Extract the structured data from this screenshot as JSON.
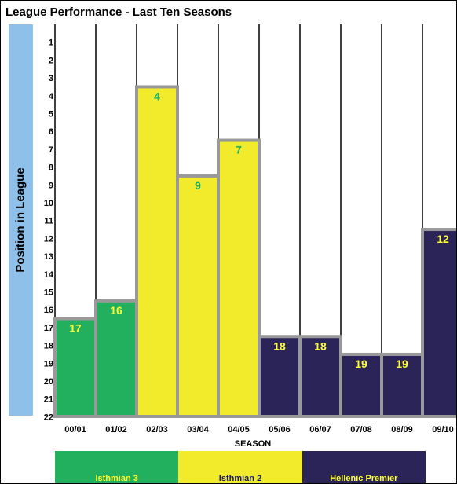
{
  "chart_data": {
    "type": "bar",
    "title": "League Performance - Last Ten Seasons",
    "xlabel": "SEASON",
    "ylabel": "Position in League",
    "categories": [
      "00/01",
      "01/02",
      "02/03",
      "03/04",
      "04/05",
      "05/06",
      "06/07",
      "07/08",
      "08/09",
      "09/10"
    ],
    "values": [
      17,
      16,
      4,
      9,
      7,
      18,
      18,
      19,
      19,
      12
    ],
    "leagues": [
      "Isthmian 3",
      "Isthmian 3",
      "Isthmian 2",
      "Isthmian 2",
      "Isthmian 2",
      "Hellenic Premier",
      "Hellenic Premier",
      "Hellenic Premier",
      "Hellenic Premier",
      "Hellenic Premier"
    ],
    "yticks": [
      1,
      2,
      3,
      4,
      5,
      6,
      7,
      8,
      9,
      10,
      11,
      12,
      13,
      14,
      15,
      16,
      17,
      18,
      19,
      20,
      21,
      22
    ],
    "ylim": [
      1,
      22
    ],
    "y_inverted": true,
    "legend": [
      {
        "name": "Isthmian 3",
        "color": "#22b05e",
        "text_color": "#ffff33"
      },
      {
        "name": "Isthmian 2",
        "color": "#f1eb2b",
        "text_color": "#1a1a5e"
      },
      {
        "name": "Hellenic Premier",
        "color": "#2b2458",
        "text_color": "#ffff33"
      }
    ]
  }
}
